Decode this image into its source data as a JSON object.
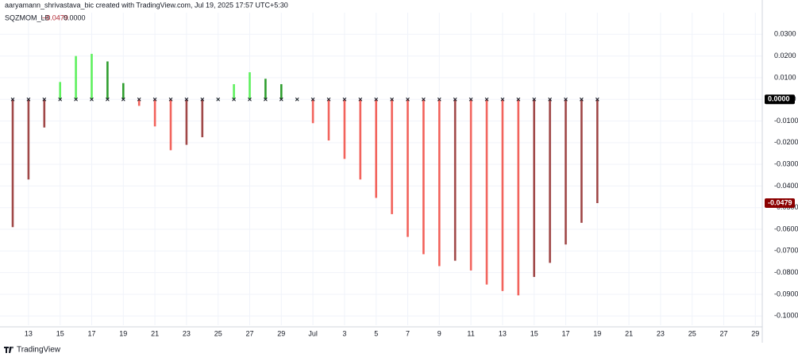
{
  "header": "aaryamann_shrivastava_bic created with TradingView.com, Jul 19, 2025 17:57 UTC+5:30",
  "footer": "TradingView",
  "chart_data": {
    "type": "bar",
    "legend": {
      "name": "SQZMOM_LB",
      "values": [
        {
          "value": -0.0479,
          "label": "−0.0479",
          "color": "#b22833"
        },
        {
          "value": 0,
          "label": "0.0000",
          "color": "#131722"
        }
      ]
    },
    "categories": [
      null,
      "13",
      null,
      "15",
      null,
      "17",
      null,
      "19",
      null,
      "21",
      null,
      "23",
      null,
      "25",
      null,
      "27",
      null,
      "29",
      null,
      "Jul",
      null,
      "3",
      null,
      "5",
      null,
      "7",
      null,
      "9",
      null,
      "11",
      null,
      "13",
      null,
      "15",
      null,
      "17",
      null,
      "19"
    ],
    "future_categories": [
      null,
      "21",
      null,
      "23",
      null,
      "25",
      null,
      "27",
      null,
      "29"
    ],
    "series": [
      {
        "name": "SQZMOM_LB",
        "values": [
          -0.059,
          -0.037,
          -0.013,
          0.008,
          0.02,
          0.021,
          0.0175,
          0.0075,
          -0.003,
          -0.0125,
          -0.0235,
          -0.021,
          -0.0175,
          0.0002,
          0.007,
          0.0125,
          0.0095,
          0.007,
          0.0001,
          -0.011,
          -0.019,
          -0.0275,
          -0.037,
          -0.0455,
          -0.053,
          -0.0635,
          -0.0715,
          -0.077,
          -0.0745,
          -0.079,
          -0.0855,
          -0.0885,
          -0.0905,
          -0.082,
          -0.0755,
          -0.067,
          -0.057,
          -0.0479
        ],
        "colors": [
          "#a04848",
          "#a04848",
          "#a04848",
          "#5ef05e",
          "#5ef05e",
          "#5ef05e",
          "#2f9e2f",
          "#2f9e2f",
          "#f2635c",
          "#f2635c",
          "#f2635c",
          "#a04848",
          "#a04848",
          "#5ef05e",
          "#5ef05e",
          "#5ef05e",
          "#2f9e2f",
          "#2f9e2f",
          "#2f9e2f",
          "#f2635c",
          "#f2635c",
          "#f2635c",
          "#f2635c",
          "#f2635c",
          "#f2635c",
          "#f2635c",
          "#f2635c",
          "#f2635c",
          "#a04848",
          "#f2635c",
          "#f2635c",
          "#f2635c",
          "#f2635c",
          "#a04848",
          "#a04848",
          "#a04848",
          "#a04848",
          "#a04848"
        ]
      }
    ],
    "ylim": [
      -0.1043,
      0.04
    ],
    "yticks": [
      {
        "value": 0.03,
        "label": "0.0300"
      },
      {
        "value": 0.02,
        "label": "0.0200"
      },
      {
        "value": 0.01,
        "label": "0.0100"
      },
      {
        "value": 0,
        "label": "0.0000"
      },
      {
        "value": -0.01,
        "label": "-0.0100"
      },
      {
        "value": -0.02,
        "label": "-0.0200"
      },
      {
        "value": -0.03,
        "label": "-0.0300"
      },
      {
        "value": -0.04,
        "label": "-0.0400"
      },
      {
        "value": -0.05,
        "label": "-0.0500"
      },
      {
        "value": -0.06,
        "label": "-0.0600"
      },
      {
        "value": -0.07,
        "label": "-0.0700"
      },
      {
        "value": -0.08,
        "label": "-0.0800"
      },
      {
        "value": -0.09,
        "label": "-0.0900"
      },
      {
        "value": -0.1,
        "label": "-0.1000"
      }
    ],
    "price_tags": [
      {
        "value": 0,
        "label": "0.0000",
        "color": "#000000"
      },
      {
        "value": -0.0479,
        "label": "-0.0479",
        "color": "#8b0000"
      }
    ],
    "grid": true
  }
}
